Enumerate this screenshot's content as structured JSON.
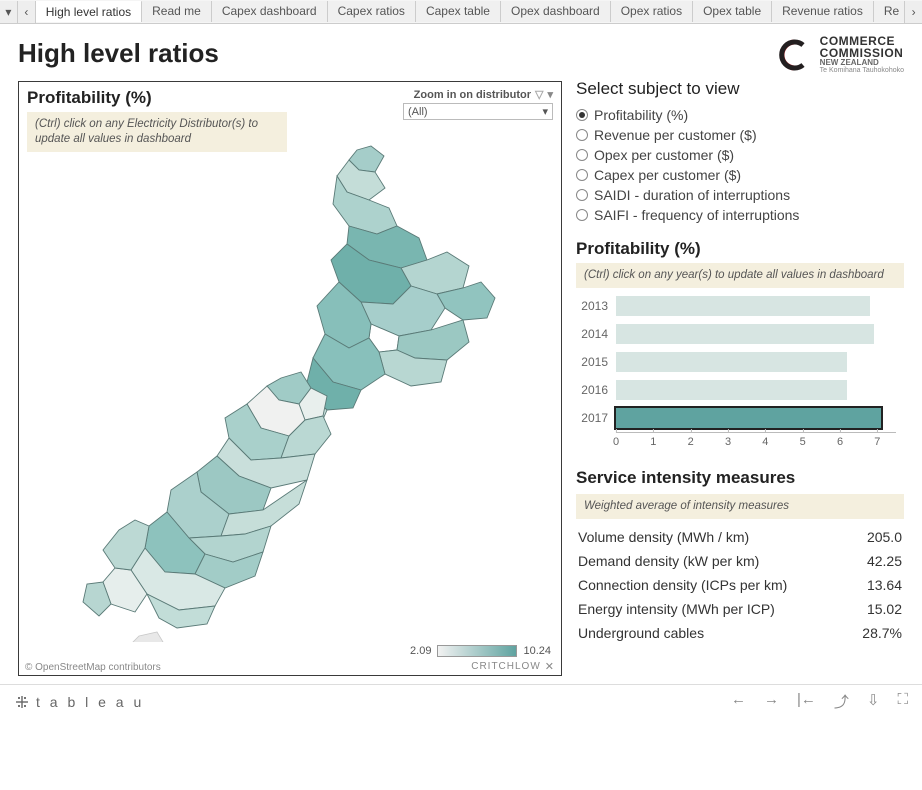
{
  "tabs": [
    "High level ratios",
    "Read me",
    "Capex dashboard",
    "Capex ratios",
    "Capex table",
    "Opex dashboard",
    "Opex ratios",
    "Opex table",
    "Revenue ratios",
    "Re"
  ],
  "active_tab": 0,
  "page_title": "High level ratios",
  "logo": {
    "l1": "COMMERCE",
    "l2": "COMMISSION",
    "l3": "NEW ZEALAND",
    "l4": "Te Komihana Tauhokohoko"
  },
  "map_panel": {
    "title": "Profitability (%)",
    "hint": "(Ctrl) click on any Electricity Distributor(s) to update all values in dashboard",
    "zoom_label": "Zoom in on distributor",
    "zoom_value": "(All)",
    "legend_min": "2.09",
    "legend_max": "10.24",
    "legend_gradient": [
      "#f2f2f2",
      "#5fa3a0"
    ],
    "attr_left": "© OpenStreetMap contributors",
    "attr_right": "CRITCHLOW",
    "region_fills": [
      "#a5cdc9",
      "#c4ddd8",
      "#add2cd",
      "#79b6b0",
      "#b4d5d0",
      "#91c4bf",
      "#6fb0aa",
      "#a6cecb",
      "#ffffff",
      "#87bfba",
      "#9bc8c2",
      "#b8d7d2",
      "#88c0bb",
      "#6fb0aa",
      "#c7dedb",
      "#a0cbc6",
      "#e8efed",
      "#f0f1f0",
      "#a9d0cb",
      "#bad8d3",
      "#c9dfdb",
      "#9cc8c3",
      "#abd0cc",
      "#c6ded9",
      "#b2d4cf",
      "#8dc2bd",
      "#a2ccc7",
      "#d9e8e5",
      "#e6eeec",
      "#bcd9d4",
      "#c2ddd8",
      "#b7d6d1",
      "#a2ccc7"
    ],
    "region_stroke": "#5a7a77"
  },
  "subject_select": {
    "title": "Select subject to view",
    "options": [
      "Profitability (%)",
      "Revenue per customer ($)",
      "Opex per customer ($)",
      "Capex per customer ($)",
      "SAIDI - duration of interruptions",
      "SAIFI - frequency of interruptions"
    ],
    "selected": 0
  },
  "year_chart": {
    "title": "Profitability (%)",
    "hint": "(Ctrl) click on any year(s) to update all values in dashboard",
    "x_max": 7.5,
    "ticks": [
      0,
      1,
      2,
      3,
      4,
      5,
      6,
      7
    ],
    "bar_color_faint": "#d7e5e2",
    "bar_color_sel": "#5fa3a0",
    "years": [
      {
        "label": "2013",
        "value": 6.8,
        "selected": false
      },
      {
        "label": "2014",
        "value": 6.9,
        "selected": false
      },
      {
        "label": "2015",
        "value": 6.2,
        "selected": false
      },
      {
        "label": "2016",
        "value": 6.2,
        "selected": false
      },
      {
        "label": "2017",
        "value": 7.1,
        "selected": true
      }
    ]
  },
  "measures": {
    "title": "Service intensity measures",
    "hint": "Weighted average of intensity measures",
    "rows": [
      {
        "label": "Volume density (MWh / km)",
        "value": "205.0"
      },
      {
        "label": "Demand density (kW per km)",
        "value": "42.25"
      },
      {
        "label": "Connection density (ICPs per km)",
        "value": "13.64"
      },
      {
        "label": "Energy intensity (MWh per ICP)",
        "value": "15.02"
      },
      {
        "label": "Underground cables",
        "value": "28.7%"
      }
    ]
  },
  "footer": {
    "brand": "t a b l e a u"
  }
}
